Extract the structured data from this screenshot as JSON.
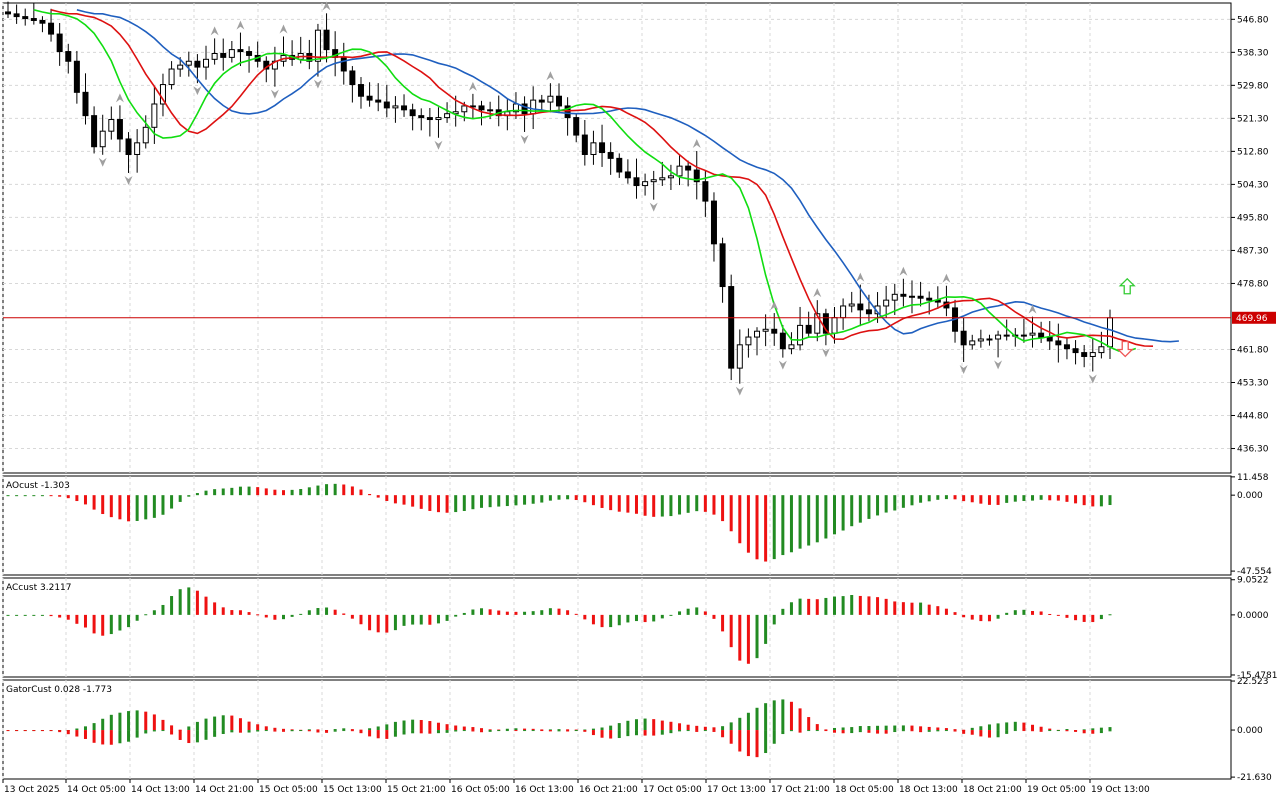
{
  "chart_data": {
    "type": "candlestick",
    "timeframe_labels": [
      "13 Oct 2025",
      "14 Oct 05:00",
      "14 Oct 13:00",
      "14 Oct 21:00",
      "15 Oct 05:00",
      "15 Oct 13:00",
      "15 Oct 21:00",
      "16 Oct 05:00",
      "16 Oct 13:00",
      "16 Oct 21:00",
      "17 Oct 05:00",
      "17 Oct 13:00",
      "17 Oct 21:00",
      "18 Oct 05:00",
      "18 Oct 13:00",
      "18 Oct 21:00",
      "19 Oct 05:00",
      "19 Oct 13:00"
    ],
    "main": {
      "price_ticks": [
        "546.80",
        "538.30",
        "529.80",
        "521.30",
        "512.80",
        "504.30",
        "495.80",
        "487.30",
        "478.80",
        "469.96",
        "461.80",
        "453.30",
        "444.80",
        "436.30"
      ],
      "current_price": "469.96",
      "ylim": [
        430.0,
        551.0
      ],
      "current_line_color": "#cc0000",
      "ohlc_close_approx": [
        548.2,
        547.5,
        547.0,
        546.5,
        545.8,
        543.0,
        538.5,
        536.0,
        528.0,
        522.0,
        514.0,
        518.0,
        521.0,
        516.0,
        512.0,
        515.0,
        519.0,
        525.0,
        530.0,
        534.0,
        535.0,
        536.0,
        534.5,
        536.5,
        538.0,
        537.0,
        539.0,
        538.5,
        537.5,
        536.0,
        534.0,
        536.0,
        537.5,
        536.5,
        538.0,
        536.0,
        544.0,
        539.0,
        537.0,
        533.5,
        530.0,
        527.0,
        526.0,
        525.5,
        524.0,
        524.5,
        523.5,
        522.0,
        521.5,
        521.0,
        521.5,
        522.5,
        523.0,
        524.5,
        524.5,
        523.5,
        523.5,
        522.0,
        523.0,
        525.0,
        522.5,
        526.0,
        525.5,
        527.0,
        524.5,
        521.5,
        517.0,
        512.0,
        515.0,
        512.5,
        511.0,
        507.5,
        506.0,
        504.0,
        505.0,
        505.5,
        506.0,
        506.5,
        509.0,
        508.0,
        505.0,
        500.0,
        489.0,
        478.0,
        457.0,
        463.0,
        465.0,
        466.5,
        467.0,
        466.0,
        462.0,
        463.0,
        468.0,
        466.0,
        471.0,
        466.0,
        470.0,
        473.0,
        473.5,
        472.0,
        471.0,
        473.0,
        474.5,
        476.0,
        475.5,
        475.5,
        475.0,
        474.5,
        474.0,
        472.5,
        466.5,
        463.0,
        464.0,
        464.5,
        464.5,
        465.5,
        465.5,
        465.5,
        465.5,
        466.0,
        465.0,
        464.0,
        463.0,
        462.0,
        461.0,
        460.0,
        461.0,
        462.5,
        469.96
      ],
      "alligator_colors": {
        "jaw": "#1f5fbf",
        "teeth": "#dd1111",
        "lips": "#11dd11"
      },
      "fractal_color": "#a0a0a0",
      "up_arrow_color": "#33cc33",
      "down_arrow_color": "#ee5555"
    },
    "ao": {
      "label": "AOcust -1.303",
      "ticks": [
        "11.458",
        "0.000",
        "-47.554"
      ],
      "ylim": [
        -50.0,
        12.0
      ],
      "up_color": "#228b22",
      "down_color": "#ee1111"
    },
    "ac": {
      "label": "ACcust 3.2117",
      "ticks": [
        "9.0522",
        "0.0000",
        "-15.4781"
      ],
      "ylim": [
        -16.0,
        9.5
      ],
      "up_color": "#228b22",
      "down_color": "#ee1111"
    },
    "gator": {
      "label": "GatorCust 0.028 -1.773",
      "ticks": [
        "22.523",
        "0.000",
        "-21.630"
      ],
      "ylim": [
        -22.5,
        23.0
      ],
      "up_color": "#228b22",
      "down_color": "#ee1111"
    }
  }
}
